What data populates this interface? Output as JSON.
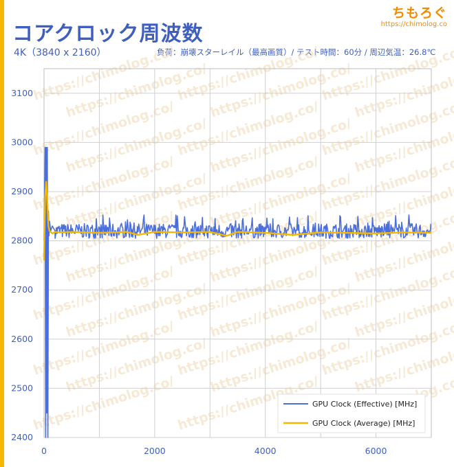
{
  "brand": {
    "name": "ちもろぐ",
    "url": "https://chimolog.co"
  },
  "header": {
    "title": "コアクロック周波数",
    "subtitle": "4K（3840 x 2160）",
    "conditions": "負荷：崩壊スターレイル（最高画質）/ テスト時間：60分 / 周辺気温：26.8℃"
  },
  "watermark": "https://chimolog.co/",
  "colors": {
    "effective": "#4a6fdc",
    "average": "#f5b800",
    "accent": "#3f5fbf",
    "brand": "#f08c00",
    "grid": "#cfcfcf"
  },
  "chart_data": {
    "type": "line",
    "xlim": [
      0,
      7000
    ],
    "ylim": [
      2400,
      3150
    ],
    "x_ticks": [
      "0",
      "2000",
      "4000",
      "6000"
    ],
    "y_ticks": [
      "2400",
      "2500",
      "2600",
      "2700",
      "2800",
      "2900",
      "3000",
      "3100"
    ],
    "grid": true,
    "legend_position": "bottom-right",
    "series": [
      {
        "name": "GPU Clock (Effective) [MHz]",
        "x": [
          0,
          20,
          30,
          40,
          50,
          60,
          70,
          80,
          90,
          100,
          120,
          150,
          200,
          300,
          500,
          1000,
          1500,
          2000,
          3000,
          4000,
          5000,
          6000,
          7000
        ],
        "values": [
          2800,
          2990,
          2400,
          2990,
          2450,
          2990,
          2400,
          2860,
          2810,
          2840,
          2820,
          2830,
          2820,
          2825,
          2822,
          2825,
          2822,
          2824,
          2822,
          2825,
          2822,
          2826,
          2825
        ],
        "band_low": 2805,
        "band_high": 2835
      },
      {
        "name": "GPU Clock (Average) [MHz]",
        "x": [
          0,
          20,
          40,
          60,
          80,
          100,
          150,
          200,
          300,
          500,
          1000,
          1500,
          1700,
          2000,
          2500,
          3000,
          3300,
          3500,
          4000,
          4500,
          5000,
          5500,
          6000,
          6500,
          7000
        ],
        "values": [
          2760,
          2890,
          2920,
          2880,
          2830,
          2820,
          2815,
          2818,
          2817,
          2818,
          2816,
          2818,
          2812,
          2818,
          2817,
          2818,
          2810,
          2818,
          2816,
          2812,
          2817,
          2816,
          2815,
          2817,
          2816
        ]
      }
    ]
  }
}
